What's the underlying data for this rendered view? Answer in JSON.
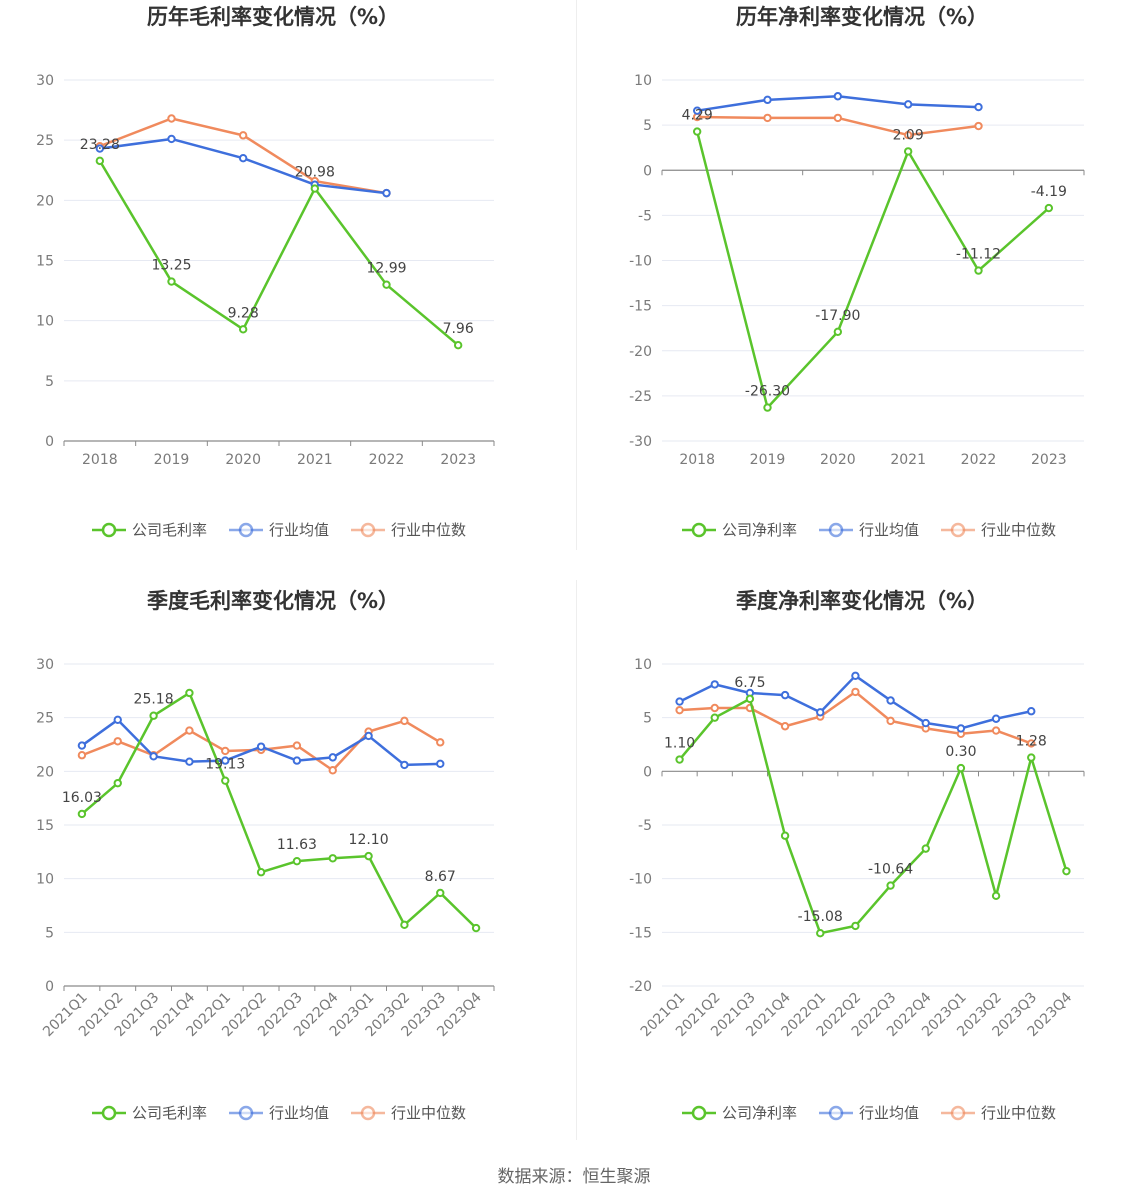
{
  "source": "数据来源：恒生聚源",
  "colors": {
    "company": "#5ac42c",
    "average": "#3e6fdc",
    "median": "#f08a5d"
  },
  "chart_data": [
    {
      "type": "line",
      "title": "历年毛利率变化情况（%）",
      "categories": [
        "2018",
        "2019",
        "2020",
        "2021",
        "2022",
        "2023"
      ],
      "ylim": [
        0,
        30
      ],
      "yticks": [
        0,
        5,
        10,
        15,
        20,
        25,
        30
      ],
      "grid": true,
      "legend": "bottom",
      "series": [
        {
          "name": "公司毛利率",
          "values": [
            23.28,
            13.25,
            9.28,
            20.98,
            12.99,
            7.96
          ],
          "labels": [
            "23.28",
            "13.25",
            "9.28",
            "20.98",
            "12.99",
            "7.96"
          ]
        },
        {
          "name": "行业均值",
          "values": [
            24.3,
            25.1,
            23.5,
            21.3,
            20.6,
            null
          ]
        },
        {
          "name": "行业中位数",
          "values": [
            24.5,
            26.8,
            25.4,
            21.6,
            20.6,
            null
          ]
        }
      ]
    },
    {
      "type": "line",
      "title": "历年净利率变化情况（%）",
      "categories": [
        "2018",
        "2019",
        "2020",
        "2021",
        "2022",
        "2023"
      ],
      "ylim": [
        -30,
        10
      ],
      "yticks": [
        -30,
        -25,
        -20,
        -15,
        -10,
        -5,
        0,
        5,
        10
      ],
      "grid": true,
      "legend": "bottom",
      "series": [
        {
          "name": "公司净利率",
          "values": [
            4.29,
            -26.3,
            -17.9,
            2.09,
            -11.12,
            -4.19
          ],
          "labels": [
            "4.29",
            "-26.30",
            "-17.90",
            "2.09",
            "-11.12",
            "-4.19"
          ]
        },
        {
          "name": "行业均值",
          "values": [
            6.6,
            7.8,
            8.2,
            7.3,
            7.0,
            null
          ]
        },
        {
          "name": "行业中位数",
          "values": [
            5.9,
            5.8,
            5.8,
            3.9,
            4.9,
            null
          ]
        }
      ]
    },
    {
      "type": "line",
      "title": "季度毛利率变化情况（%）",
      "categories": [
        "2021Q1",
        "2021Q2",
        "2021Q3",
        "2021Q4",
        "2022Q1",
        "2022Q2",
        "2022Q3",
        "2022Q4",
        "2023Q1",
        "2023Q2",
        "2023Q3",
        "2023Q4"
      ],
      "ylim": [
        0,
        30
      ],
      "yticks": [
        0,
        5,
        10,
        15,
        20,
        25,
        30
      ],
      "grid": true,
      "legend": "bottom",
      "series": [
        {
          "name": "公司毛利率",
          "values": [
            16.03,
            18.9,
            25.18,
            27.3,
            19.13,
            10.6,
            11.63,
            11.9,
            12.1,
            5.7,
            8.67,
            5.4
          ],
          "labels": [
            "16.03",
            null,
            "25.18",
            null,
            "19.13",
            null,
            "11.63",
            null,
            "12.10",
            null,
            "8.67",
            null
          ]
        },
        {
          "name": "行业均值",
          "values": [
            22.4,
            24.8,
            21.4,
            20.9,
            21.0,
            22.3,
            21.0,
            21.3,
            23.3,
            20.6,
            20.7,
            null
          ]
        },
        {
          "name": "行业中位数",
          "values": [
            21.5,
            22.8,
            21.5,
            23.8,
            21.9,
            22.0,
            22.4,
            20.1,
            23.7,
            24.7,
            22.7,
            null
          ]
        }
      ]
    },
    {
      "type": "line",
      "title": "季度净利率变化情况（%）",
      "categories": [
        "2021Q1",
        "2021Q2",
        "2021Q3",
        "2021Q4",
        "2022Q1",
        "2022Q2",
        "2022Q3",
        "2022Q4",
        "2023Q1",
        "2023Q2",
        "2023Q3",
        "2023Q4"
      ],
      "ylim": [
        -20,
        10
      ],
      "yticks": [
        -20,
        -15,
        -10,
        -5,
        0,
        5,
        10
      ],
      "grid": true,
      "legend": "bottom",
      "series": [
        {
          "name": "公司净利率",
          "values": [
            1.1,
            5.0,
            6.75,
            -6.0,
            -15.08,
            -14.4,
            -10.64,
            -7.2,
            0.3,
            -11.6,
            1.28,
            -9.3
          ],
          "labels": [
            "1.10",
            null,
            "6.75",
            null,
            "-15.08",
            null,
            "-10.64",
            null,
            "0.30",
            null,
            "1.28",
            null
          ]
        },
        {
          "name": "行业均值",
          "values": [
            6.5,
            8.1,
            7.3,
            7.1,
            5.5,
            8.9,
            6.6,
            4.5,
            4.0,
            4.9,
            5.6,
            null
          ]
        },
        {
          "name": "行业中位数",
          "values": [
            5.7,
            5.9,
            5.9,
            4.2,
            5.1,
            7.4,
            4.7,
            4.0,
            3.5,
            3.8,
            2.6,
            null
          ]
        }
      ]
    }
  ]
}
